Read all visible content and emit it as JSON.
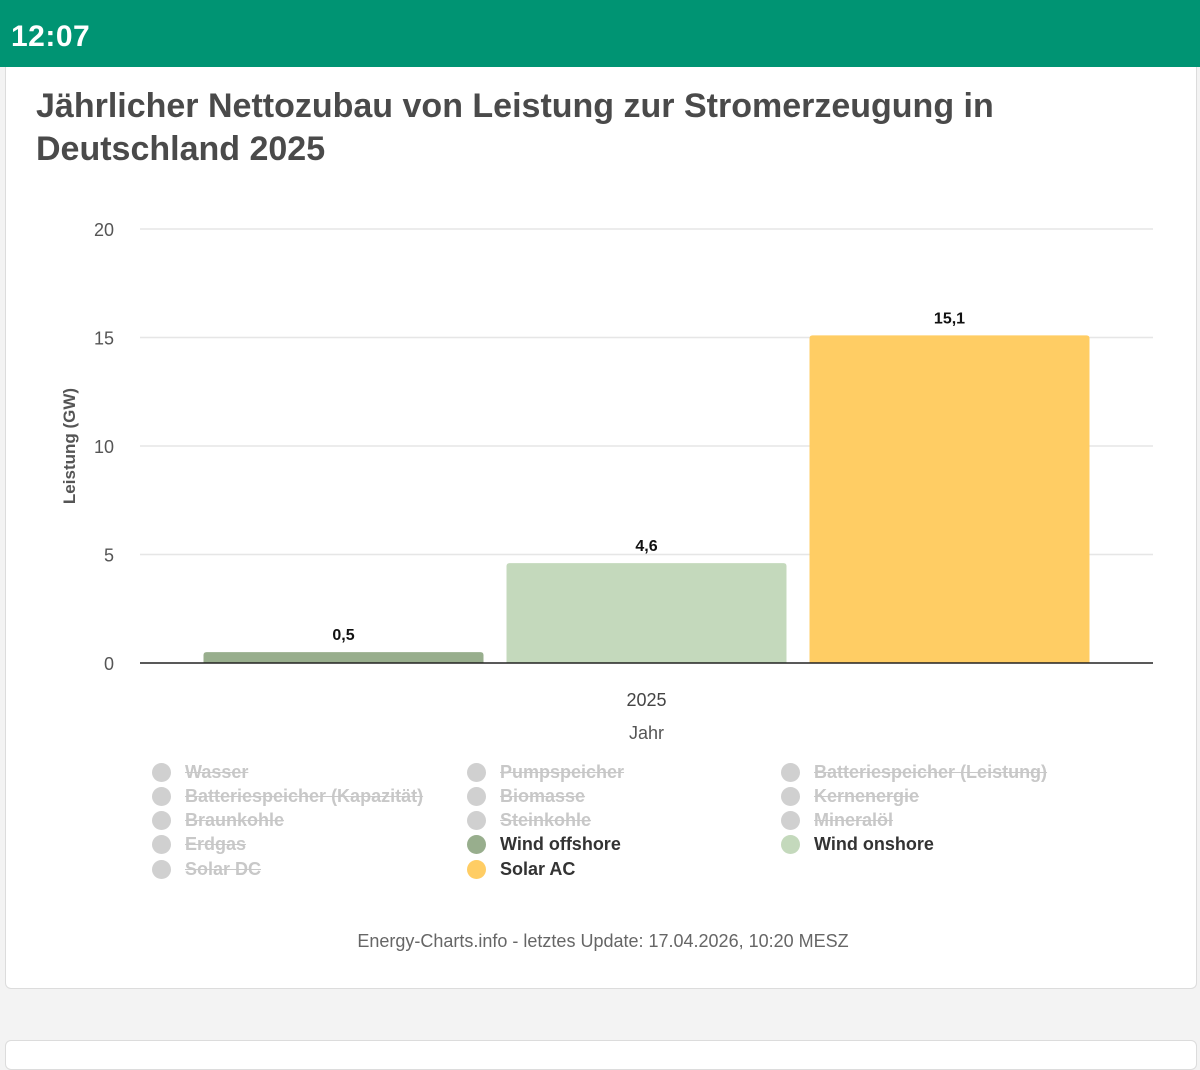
{
  "status_bar": {
    "time": "12:07"
  },
  "page": {
    "title": "Jährlicher Nettozubau von Leistung zur Stromerzeugung in Deutschland 2025",
    "footer": "Energy-Charts.info - letztes Update: 17.04.2026, 10:20 MESZ"
  },
  "chart_data": {
    "type": "bar",
    "title": "Jährlicher Nettozubau von Leistung zur Stromerzeugung in Deutschland 2025",
    "categories": [
      "2025"
    ],
    "xlabel": "Jahr",
    "ylabel": "Leistung (GW)",
    "ylim": [
      0,
      20
    ],
    "yticks": [
      0,
      5,
      10,
      15,
      20
    ],
    "grid": true,
    "legend_position": "bottom",
    "series": [
      {
        "name": "Wind offshore",
        "values": [
          0.5
        ],
        "label": "0,5",
        "color": "#98ae8d"
      },
      {
        "name": "Wind onshore",
        "values": [
          4.6
        ],
        "label": "4,6",
        "color": "#c4d9bc"
      },
      {
        "name": "Solar AC",
        "values": [
          15.1
        ],
        "label": "15,1",
        "color": "#ffcd64"
      }
    ],
    "legend": [
      {
        "name": "Wasser",
        "visible": false,
        "color": "#d0d0d0"
      },
      {
        "name": "Pumpspeicher",
        "visible": false,
        "color": "#d0d0d0"
      },
      {
        "name": "Batteriespeicher (Leistung)",
        "visible": false,
        "color": "#d0d0d0"
      },
      {
        "name": "Batteriespeicher (Kapazität)",
        "visible": false,
        "color": "#d0d0d0"
      },
      {
        "name": "Biomasse",
        "visible": false,
        "color": "#d0d0d0"
      },
      {
        "name": "Kernenergie",
        "visible": false,
        "color": "#d0d0d0"
      },
      {
        "name": "Braunkohle",
        "visible": false,
        "color": "#d0d0d0"
      },
      {
        "name": "Steinkohle",
        "visible": false,
        "color": "#d0d0d0"
      },
      {
        "name": "Mineralöl",
        "visible": false,
        "color": "#d0d0d0"
      },
      {
        "name": "Erdgas",
        "visible": false,
        "color": "#d0d0d0"
      },
      {
        "name": "Wind offshore",
        "visible": true,
        "color": "#98ae8d"
      },
      {
        "name": "Wind onshore",
        "visible": true,
        "color": "#c4d9bc"
      },
      {
        "name": "Solar DC",
        "visible": false,
        "color": "#d0d0d0"
      },
      {
        "name": "Solar AC",
        "visible": true,
        "color": "#ffcd64"
      }
    ]
  }
}
